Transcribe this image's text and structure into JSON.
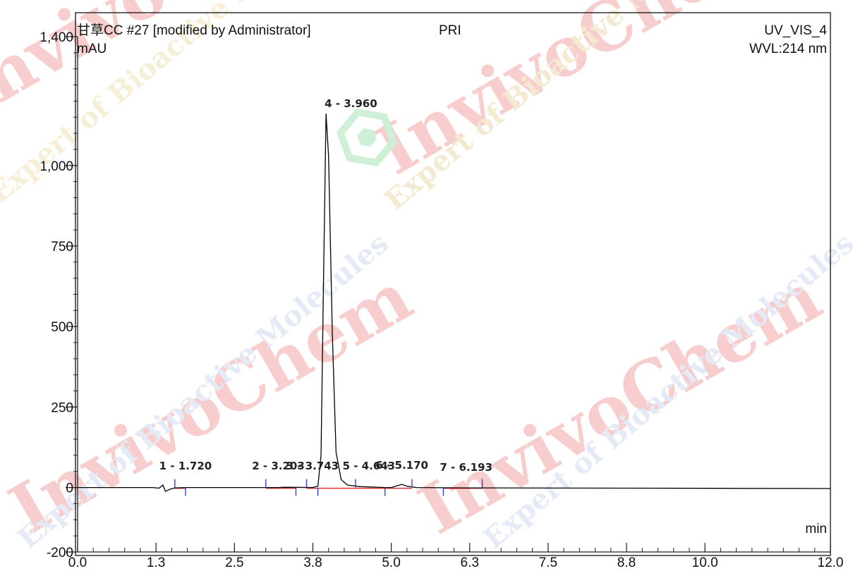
{
  "header": {
    "sample": "甘草CC #27 [modified by Administrator]",
    "tag": "PRI",
    "channel": "UV_VIS_4",
    "wavelength": "WVL:214 nm"
  },
  "watermark": {
    "brand": "InvivoChem",
    "tagline": "Expert of Bioactive Molecules",
    "brand_color": "#d81e1e"
  },
  "chart_data": {
    "type": "line",
    "title": "",
    "xlabel": "min",
    "ylabel": "mAU",
    "xlim": [
      0.0,
      12.0
    ],
    "ylim": [
      -200,
      1400
    ],
    "x_ticks": [
      {
        "value": 0.0,
        "label": "0.0"
      },
      {
        "value": 1.25,
        "label": "1.3"
      },
      {
        "value": 2.5,
        "label": "2.5"
      },
      {
        "value": 3.75,
        "label": "3.8"
      },
      {
        "value": 5.0,
        "label": "5.0"
      },
      {
        "value": 6.25,
        "label": "6.3"
      },
      {
        "value": 7.5,
        "label": "7.5"
      },
      {
        "value": 8.75,
        "label": "8.8"
      },
      {
        "value": 10.0,
        "label": "10.0"
      },
      {
        "value": 12.0,
        "label": "12.0"
      }
    ],
    "y_ticks": [
      {
        "value": 1400,
        "label": "1,400"
      },
      {
        "value": 1000,
        "label": "1,000"
      },
      {
        "value": 750,
        "label": "750"
      },
      {
        "value": 500,
        "label": "500"
      },
      {
        "value": 250,
        "label": "250"
      },
      {
        "value": 0,
        "label": "0"
      },
      {
        "value": -200,
        "label": "-200"
      }
    ],
    "series": [
      {
        "points": [
          [
            0.0,
            0
          ],
          [
            1.2,
            0
          ],
          [
            1.3,
            -2
          ],
          [
            1.36,
            8
          ],
          [
            1.4,
            -12
          ],
          [
            1.46,
            -6
          ],
          [
            1.55,
            -1
          ],
          [
            1.72,
            0
          ],
          [
            3.2,
            0
          ],
          [
            3.3,
            1
          ],
          [
            3.74,
            0
          ],
          [
            3.83,
            4
          ],
          [
            3.88,
            100
          ],
          [
            3.92,
            650
          ],
          [
            3.96,
            1160
          ],
          [
            4.0,
            1030
          ],
          [
            4.06,
            480
          ],
          [
            4.12,
            110
          ],
          [
            4.2,
            25
          ],
          [
            4.3,
            8
          ],
          [
            4.5,
            3
          ],
          [
            4.643,
            2
          ],
          [
            4.9,
            0
          ],
          [
            5.0,
            0
          ],
          [
            5.1,
            6
          ],
          [
            5.17,
            10
          ],
          [
            5.25,
            4
          ],
          [
            5.4,
            0
          ],
          [
            6.193,
            -1
          ],
          [
            9.0,
            -2
          ],
          [
            12.0,
            -3
          ]
        ],
        "color": "#000000"
      }
    ],
    "peaks": [
      {
        "label": "1 - 1.720",
        "rt": 1.72
      },
      {
        "label": "2 - 3.203",
        "rt": 3.203
      },
      {
        "label": "3 - 3.743",
        "rt": 3.743
      },
      {
        "label": "4 - 3.960",
        "rt": 3.96
      },
      {
        "label": "5 - 4.643",
        "rt": 4.643
      },
      {
        "label": "6 - 5.170",
        "rt": 5.17
      },
      {
        "label": "7 - 6.193",
        "rt": 6.193
      }
    ],
    "peak_bounds": [
      1.55,
      1.72,
      3.0,
      3.48,
      3.65,
      3.83,
      4.43,
      4.9,
      5.33,
      5.83,
      6.45
    ],
    "baseline_color": "#e03030",
    "marker_color": "#3a3ad8",
    "grid": false
  }
}
